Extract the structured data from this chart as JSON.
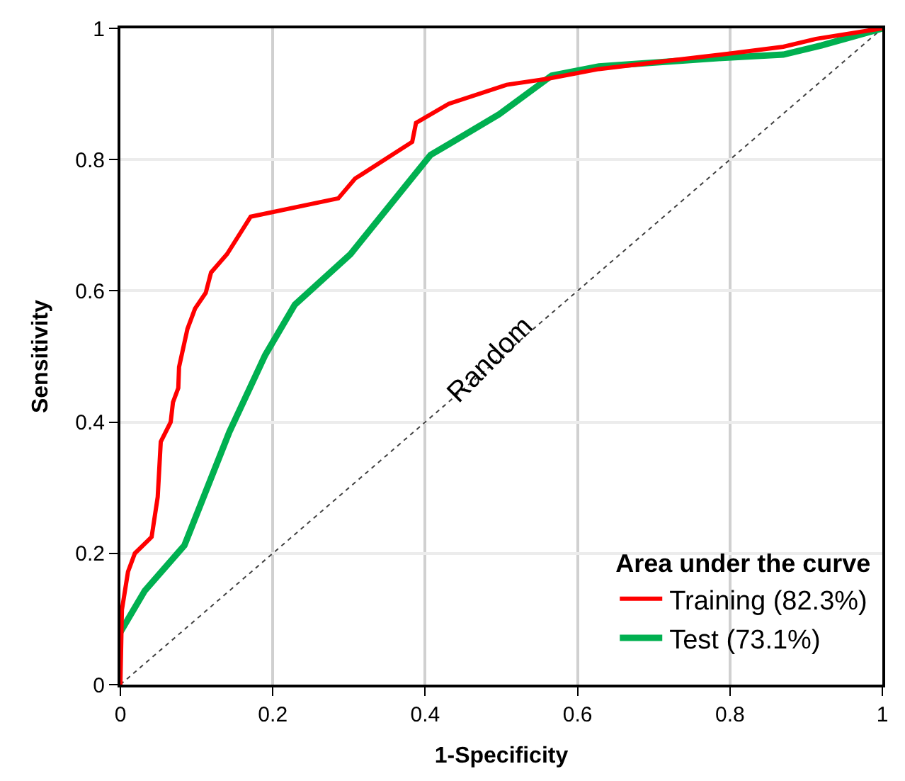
{
  "chart_data": {
    "type": "line",
    "xlabel": "1-Specificity",
    "ylabel": "Sensitivity",
    "legend_title": "Area under the curve",
    "series": [
      {
        "name": "Training (82.3%)",
        "color": "#ff0000",
        "x": [
          0,
          0.002,
          0.01,
          0.019,
          0.041,
          0.049,
          0.053,
          0.066,
          0.069,
          0.076,
          0.077,
          0.088,
          0.098,
          0.112,
          0.119,
          0.14,
          0.171,
          0.286,
          0.308,
          0.383,
          0.388,
          0.431,
          0.507,
          0.56,
          0.628,
          0.715,
          0.802,
          0.87,
          0.913,
          1
        ],
        "values": [
          0,
          0.114,
          0.172,
          0.2,
          0.225,
          0.286,
          0.37,
          0.4,
          0.43,
          0.452,
          0.484,
          0.542,
          0.573,
          0.597,
          0.628,
          0.656,
          0.713,
          0.741,
          0.771,
          0.827,
          0.856,
          0.885,
          0.914,
          0.923,
          0.938,
          0.95,
          0.962,
          0.972,
          0.984,
          1
        ]
      },
      {
        "name": "Test (73.1%)",
        "color": "#00b050",
        "x": [
          0,
          0.032,
          0.084,
          0.143,
          0.19,
          0.229,
          0.302,
          0.407,
          0.432,
          0.497,
          0.566,
          0.628,
          0.789,
          0.87,
          0.92,
          1
        ],
        "values": [
          0.08,
          0.143,
          0.212,
          0.385,
          0.502,
          0.579,
          0.656,
          0.807,
          0.824,
          0.869,
          0.928,
          0.942,
          0.955,
          0.96,
          0.974,
          1
        ]
      },
      {
        "color": "#404040",
        "line_style": "dotted",
        "x": [
          0,
          1
        ],
        "values": [
          0,
          1
        ]
      }
    ],
    "annotations": [
      {
        "text": "Random",
        "x": 0.5,
        "y": 0.5
      }
    ],
    "xlim": [
      0,
      1
    ],
    "ylim": [
      0,
      1
    ],
    "xticks": [
      0,
      0.2,
      0.4,
      0.6,
      0.8,
      1
    ],
    "yticks": [
      0,
      0.2,
      0.4,
      0.6,
      0.8,
      1
    ],
    "grid": true,
    "legend": "bottom right",
    "marker": "none",
    "line_style": "solid"
  }
}
